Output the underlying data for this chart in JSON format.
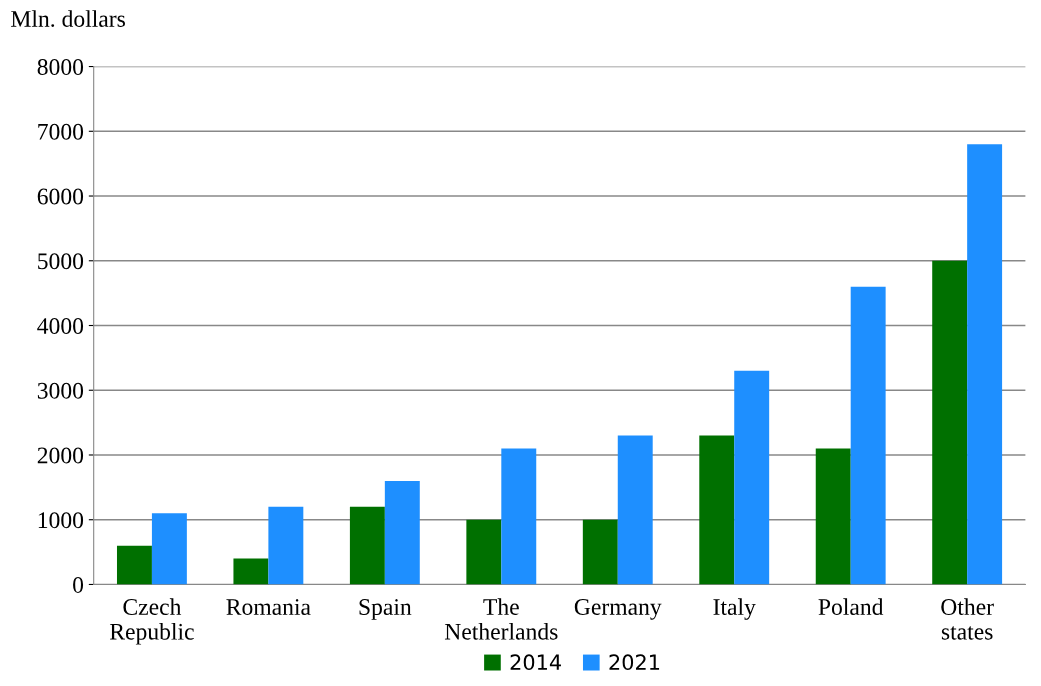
{
  "chart_data": {
    "type": "bar",
    "ylabel": "Mln. dollars",
    "categories": [
      "Czech Republic",
      "Romania",
      "Spain",
      "The Netherlands",
      "Germany",
      "Italy",
      "Poland",
      "Other states"
    ],
    "series": [
      {
        "name": "2014",
        "color": "#007000",
        "values": [
          600,
          400,
          1200,
          1000,
          1000,
          2300,
          2100,
          5000
        ]
      },
      {
        "name": "2021",
        "color": "#1e8fff",
        "values": [
          1100,
          1200,
          1600,
          2100,
          2300,
          3300,
          4600,
          6800
        ]
      }
    ],
    "ylim": [
      0,
      8000
    ],
    "yticks": [
      0,
      1000,
      2000,
      3000,
      4000,
      5000,
      6000,
      7000,
      8000
    ],
    "grid": "y",
    "legend": "bottom"
  }
}
